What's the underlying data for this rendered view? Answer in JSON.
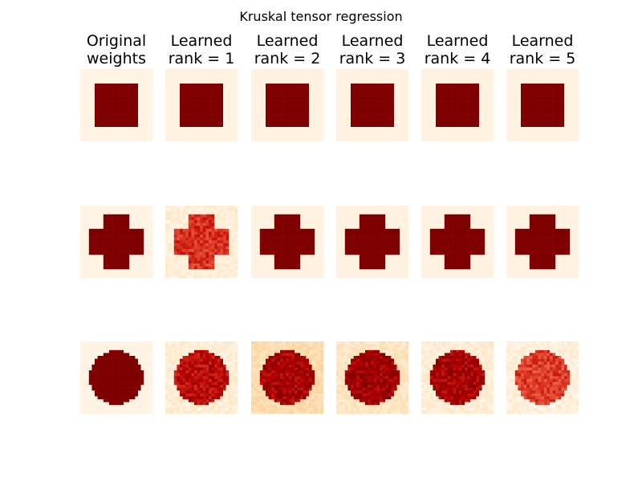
{
  "chart_data": {
    "type": "heatmap",
    "title": "Kruskal tensor regression",
    "colormap": "OrRd",
    "grid_size": 25,
    "columns": [
      {
        "title_lines": [
          "Original",
          "weights"
        ]
      },
      {
        "title_lines": [
          "Learned",
          "rank = 1"
        ]
      },
      {
        "title_lines": [
          "Learned",
          "rank = 2"
        ]
      },
      {
        "title_lines": [
          "Learned",
          "rank = 3"
        ]
      },
      {
        "title_lines": [
          "Learned",
          "rank = 4"
        ]
      },
      {
        "title_lines": [
          "Learned",
          "rank = 5"
        ]
      }
    ],
    "rows": [
      {
        "pattern": "square",
        "estimates": [
          {
            "background": 0.03,
            "core": 1.0
          },
          {
            "background": 0.04,
            "core": 1.0
          },
          {
            "background": 0.04,
            "core": 1.0
          },
          {
            "background": 0.04,
            "core": 1.0
          },
          {
            "background": 0.04,
            "core": 1.0
          },
          {
            "background": 0.04,
            "core": 1.0
          }
        ]
      },
      {
        "pattern": "cross",
        "estimates": [
          {
            "background": 0.03,
            "core": 1.0
          },
          {
            "background": 0.07,
            "core": 0.75
          },
          {
            "background": 0.04,
            "core": 1.0
          },
          {
            "background": 0.04,
            "core": 1.0
          },
          {
            "background": 0.04,
            "core": 1.0
          },
          {
            "background": 0.04,
            "core": 1.0
          }
        ]
      },
      {
        "pattern": "disk",
        "estimates": [
          {
            "background": 0.03,
            "core": 1.0
          },
          {
            "background": 0.08,
            "core": 0.85
          },
          {
            "background": 0.2,
            "core": 0.9
          },
          {
            "background": 0.14,
            "core": 0.92
          },
          {
            "background": 0.08,
            "core": 0.9
          },
          {
            "background": 0.06,
            "core": 0.72
          }
        ]
      }
    ]
  }
}
